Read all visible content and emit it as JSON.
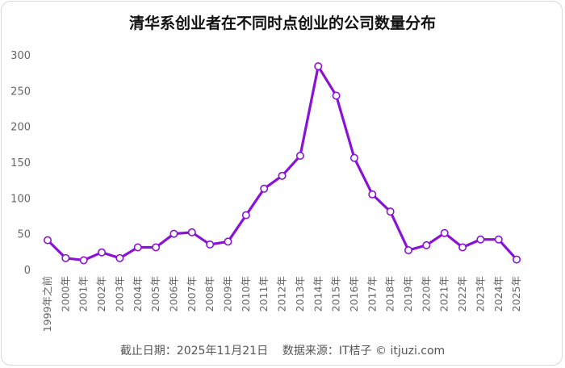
{
  "chart_data": {
    "type": "line",
    "title": "清华系创业者在不同时点创业的公司数量分布",
    "footer": "截止日期：2025年11月21日    数据来源：IT桔子 © itjuzi.com",
    "categories": [
      "1999年之前",
      "2000年",
      "2001年",
      "2002年",
      "2003年",
      "2004年",
      "2005年",
      "2006年",
      "2007年",
      "2008年",
      "2009年",
      "2010年",
      "2011年",
      "2012年",
      "2013年",
      "2014年",
      "2015年",
      "2016年",
      "2017年",
      "2018年",
      "2019年",
      "2020年",
      "2021年",
      "2022年",
      "2023年",
      "2024年",
      "2025年"
    ],
    "values": [
      41,
      16,
      13,
      24,
      16,
      31,
      31,
      50,
      52,
      35,
      39,
      76,
      113,
      131,
      159,
      284,
      243,
      156,
      105,
      81,
      27,
      34,
      51,
      31,
      42,
      42,
      14
    ],
    "ylim": [
      0,
      300
    ],
    "yticks": [
      0,
      50,
      100,
      150,
      200,
      250,
      300
    ],
    "grid": false,
    "line_color": "#8a12d6"
  }
}
